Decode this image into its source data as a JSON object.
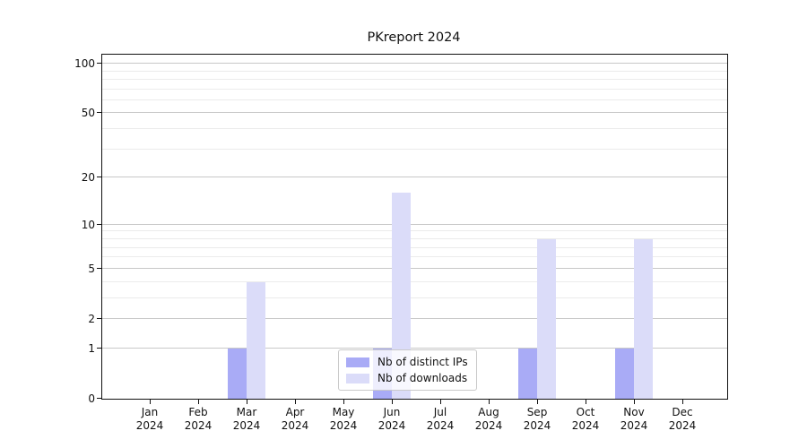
{
  "title": "PKreport 2024",
  "chart_data": {
    "type": "bar",
    "title": "PKreport 2024",
    "categories": [
      "Jan 2024",
      "Feb 2024",
      "Mar 2024",
      "Apr 2024",
      "May 2024",
      "Jun 2024",
      "Jul 2024",
      "Aug 2024",
      "Sep 2024",
      "Oct 2024",
      "Nov 2024",
      "Dec 2024"
    ],
    "series": [
      {
        "name": "Nb of distinct IPs",
        "color": "#a9abf6",
        "values": [
          0,
          0,
          1,
          0,
          0,
          1,
          0,
          0,
          1,
          0,
          1,
          0
        ]
      },
      {
        "name": "Nb of downloads",
        "color": "#dbdcf9",
        "values": [
          0,
          0,
          4,
          0,
          0,
          16,
          0,
          0,
          8,
          0,
          8,
          0
        ]
      }
    ],
    "xlabel": "",
    "ylabel": "",
    "y_axis": {
      "scale": "log1p",
      "ticks": [
        0,
        1,
        2,
        5,
        10,
        20,
        50,
        100
      ],
      "minor_ticks": [
        3,
        4,
        6,
        7,
        8,
        9,
        30,
        40,
        60,
        70,
        80,
        90
      ],
      "ylim": [
        0,
        113
      ]
    },
    "grid": true,
    "legend_position": "lower center",
    "colors": {
      "major_grid": "#c8c8c8",
      "minor_grid": "#ebebeb",
      "spine": "#111111"
    }
  }
}
